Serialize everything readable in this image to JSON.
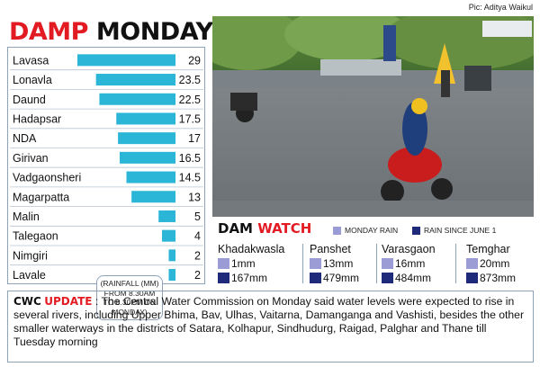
{
  "credit": "Pic: Aditya Waikul",
  "title": {
    "part1": "DAMP",
    "part2": "MONDAY"
  },
  "chart_data": {
    "type": "bar",
    "orientation": "horizontal",
    "categories": [
      "Lavasa",
      "Lonavla",
      "Daund",
      "Hadapsar",
      "NDA",
      "Girivan",
      "Vadgaonsheri",
      "Magarpatta",
      "Malin",
      "Talegaon",
      "Nimgiri",
      "Lavale"
    ],
    "values": [
      29,
      23.5,
      22.5,
      17.5,
      17,
      16.5,
      14.5,
      13,
      5,
      4,
      2,
      2
    ],
    "value_labels": [
      "29",
      "23.5",
      "22.5",
      "17.5",
      "17",
      "16.5",
      "14.5",
      "13",
      "5",
      "4",
      "2",
      "2"
    ],
    "xlim": [
      0,
      29
    ],
    "bar_color": "#2bb5d6",
    "note": "(RAINFALL (MM) FROM 8.30AM TO 8.30PM ON MONDAY)"
  },
  "dam_watch": {
    "title1": "DAM",
    "title2": "WATCH",
    "legend": [
      {
        "label": "MONDAY RAIN",
        "color": "#9b9bd6"
      },
      {
        "label": "RAIN SINCE JUNE 1",
        "color": "#1f2a7a"
      }
    ],
    "dams": [
      {
        "name": "Khadakwasla",
        "monday": "1mm",
        "since": "167mm"
      },
      {
        "name": "Panshet",
        "monday": "13mm",
        "since": "479mm"
      },
      {
        "name": "Varasgaon",
        "monday": "16mm",
        "since": "484mm"
      },
      {
        "name": "Temghar",
        "monday": "20mm",
        "since": "873mm"
      }
    ]
  },
  "cwc": {
    "label1": "CWC",
    "label2": "UPDATE",
    "text": " : The Central Water Commission on Monday said water levels were expected to rise in several rivers, including Upper Bhima, Bav, Ulhas, Vaitarna, Damanganga and Vashisti, besides the other smaller waterways in the districts of Satara, Kolhapur, Sindhudurg, Raigad, Palghar and Thane till Tuesday morning"
  },
  "colors": {
    "accent_red": "#e21b23",
    "border_blue": "#8fa3b8",
    "monday_rain": "#9b9bd6",
    "since_june": "#1f2a7a"
  }
}
